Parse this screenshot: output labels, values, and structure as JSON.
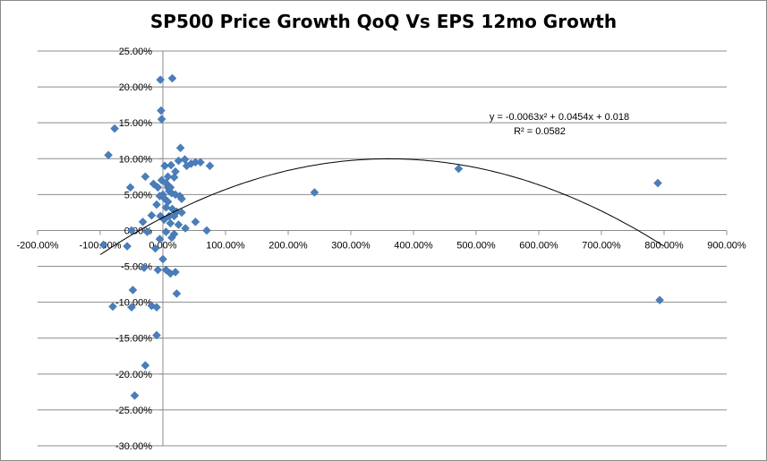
{
  "chart_data": {
    "type": "scatter",
    "title": "SP500 Price  Growth QoQ Vs EPS 12mo Growth",
    "xlabel": "",
    "ylabel": "",
    "xlim": [
      -2.0,
      9.0
    ],
    "ylim": [
      -0.3,
      0.25
    ],
    "x_ticks": [
      "-200.00%",
      "-100.00%",
      "0.00%",
      "100.00%",
      "200.00%",
      "300.00%",
      "400.00%",
      "500.00%",
      "600.00%",
      "700.00%",
      "800.00%",
      "900.00%"
    ],
    "y_ticks": [
      "25.00%",
      "20.00%",
      "15.00%",
      "10.00%",
      "5.00%",
      "0.00%",
      "-5.00%",
      "-10.00%",
      "-15.00%",
      "-20.00%",
      "-25.00%",
      "-30.00%"
    ],
    "grid": "horizontal",
    "marker_color": "#4a7ebb",
    "trendline": {
      "type": "polynomial",
      "coefficients": [
        -0.0063,
        0.0454,
        0.018
      ],
      "equation": "y = -0.0063x² + 0.0454x + 0.018",
      "r2": "R² = 0.0582",
      "color": "#000000"
    },
    "points": [
      [
        -0.04,
        0.21
      ],
      [
        0.15,
        0.212
      ],
      [
        -0.03,
        0.167
      ],
      [
        -0.02,
        0.155
      ],
      [
        -0.77,
        0.142
      ],
      [
        -0.87,
        0.105
      ],
      [
        0.28,
        0.115
      ],
      [
        -0.28,
        0.075
      ],
      [
        -0.52,
        0.06
      ],
      [
        0.25,
        0.097
      ],
      [
        0.35,
        0.099
      ],
      [
        0.45,
        0.093
      ],
      [
        0.52,
        0.095
      ],
      [
        0.75,
        0.09
      ],
      [
        0.03,
        0.09
      ],
      [
        0.13,
        0.091
      ],
      [
        0.2,
        0.082
      ],
      [
        0.18,
        0.074
      ],
      [
        -0.15,
        0.065
      ],
      [
        -0.08,
        0.06
      ],
      [
        -0.02,
        0.07
      ],
      [
        0.05,
        0.066
      ],
      [
        0.08,
        0.06
      ],
      [
        0.1,
        0.055
      ],
      [
        0.14,
        0.052
      ],
      [
        0.0,
        0.05
      ],
      [
        -0.05,
        0.048
      ],
      [
        0.02,
        0.045
      ],
      [
        0.12,
        0.06
      ],
      [
        0.2,
        0.05
      ],
      [
        0.27,
        0.048
      ],
      [
        0.3,
        0.044
      ],
      [
        0.08,
        0.04
      ],
      [
        -0.1,
        0.036
      ],
      [
        0.05,
        0.032
      ],
      [
        0.15,
        0.03
      ],
      [
        0.22,
        0.026
      ],
      [
        0.3,
        0.025
      ],
      [
        -0.04,
        0.02
      ],
      [
        0.1,
        0.02
      ],
      [
        0.18,
        0.02
      ],
      [
        -0.18,
        0.021
      ],
      [
        -0.32,
        0.012
      ],
      [
        0.02,
        0.015
      ],
      [
        0.12,
        0.01
      ],
      [
        0.25,
        0.008
      ],
      [
        0.36,
        0.003
      ],
      [
        0.52,
        0.012
      ],
      [
        0.7,
        0.0
      ],
      [
        -0.5,
        0.0
      ],
      [
        -0.25,
        -0.002
      ],
      [
        0.05,
        -0.002
      ],
      [
        0.18,
        -0.005
      ],
      [
        -0.05,
        -0.012
      ],
      [
        0.14,
        -0.01
      ],
      [
        -0.12,
        -0.025
      ],
      [
        -0.57,
        -0.022
      ],
      [
        -0.95,
        -0.02
      ],
      [
        0.0,
        -0.04
      ],
      [
        -0.3,
        -0.052
      ],
      [
        0.05,
        -0.055
      ],
      [
        0.12,
        -0.06
      ],
      [
        0.2,
        -0.058
      ],
      [
        -0.08,
        -0.055
      ],
      [
        -0.48,
        -0.083
      ],
      [
        0.22,
        -0.088
      ],
      [
        -0.18,
        -0.105
      ],
      [
        -0.1,
        -0.107
      ],
      [
        -0.5,
        -0.107
      ],
      [
        -0.8,
        -0.106
      ],
      [
        -0.1,
        -0.146
      ],
      [
        -0.28,
        -0.188
      ],
      [
        -0.45,
        -0.23
      ],
      [
        2.42,
        0.053
      ],
      [
        4.72,
        0.086
      ],
      [
        7.9,
        0.066
      ],
      [
        7.93,
        -0.097
      ],
      [
        0.6,
        0.095
      ],
      [
        0.38,
        0.09
      ],
      [
        0.08,
        0.075
      ]
    ]
  }
}
